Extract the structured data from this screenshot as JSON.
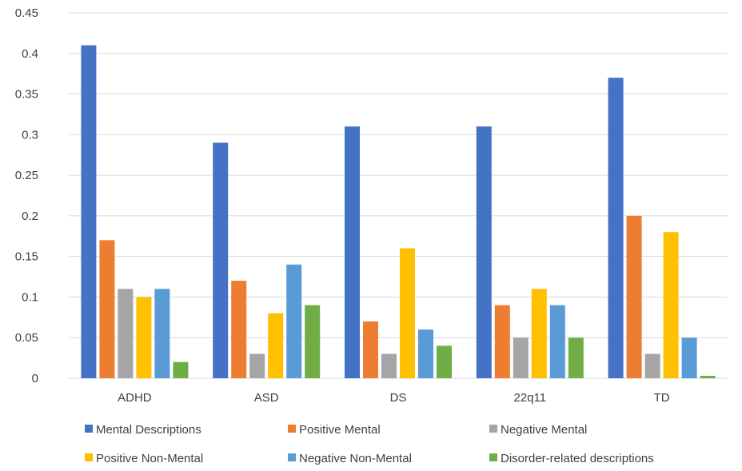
{
  "chart_data": {
    "type": "bar",
    "categories": [
      "ADHD",
      "ASD",
      "DS",
      "22q11",
      "TD"
    ],
    "series": [
      {
        "name": "Mental Descriptions",
        "color": "#4472C4",
        "values": [
          0.41,
          0.29,
          0.31,
          0.31,
          0.37
        ]
      },
      {
        "name": "Positive Mental",
        "color": "#ED7D31",
        "values": [
          0.17,
          0.12,
          0.07,
          0.09,
          0.2
        ]
      },
      {
        "name": "Negative Mental",
        "color": "#A5A5A5",
        "values": [
          0.11,
          0.03,
          0.03,
          0.05,
          0.03
        ]
      },
      {
        "name": "Positive Non-Mental",
        "color": "#FFC000",
        "values": [
          0.1,
          0.08,
          0.16,
          0.11,
          0.18
        ]
      },
      {
        "name": "Negative Non-Mental",
        "color": "#5B9BD5",
        "values": [
          0.11,
          0.14,
          0.06,
          0.09,
          0.05
        ]
      },
      {
        "name": "Disorder-related descriptions",
        "color": "#70AD47",
        "values": [
          0.02,
          0.09,
          0.04,
          0.05,
          0.003
        ]
      }
    ],
    "yticks": [
      "0",
      "0.05",
      "0.1",
      "0.15",
      "0.2",
      "0.25",
      "0.3",
      "0.35",
      "0.4",
      "0.45"
    ],
    "ylim": [
      0,
      0.45
    ],
    "title": "",
    "xlabel": "",
    "ylabel": "",
    "grid": true,
    "legend_position": "bottom"
  }
}
